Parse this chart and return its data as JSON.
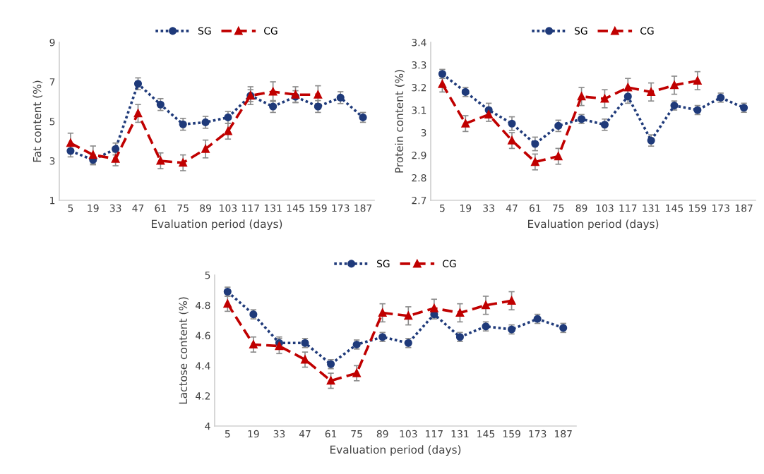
{
  "chart_data": [
    {
      "type": "line",
      "xlabel": "Evaluation period (days)",
      "ylabel": "Fat content (%)",
      "categories": [
        "5",
        "19",
        "33",
        "47",
        "61",
        "75",
        "89",
        "103",
        "117",
        "131",
        "145",
        "159",
        "173",
        "187"
      ],
      "ylim": [
        1,
        9
      ],
      "yticks": [
        1,
        3,
        5,
        7,
        9
      ],
      "legend": "top",
      "grid": false,
      "series": [
        {
          "name": "SG",
          "color": "#1f3a7a",
          "line_style": "dotted",
          "marker": "circle",
          "values": [
            3.5,
            3.05,
            3.6,
            6.9,
            5.85,
            4.85,
            4.95,
            5.2,
            6.3,
            5.75,
            6.25,
            5.75,
            6.2,
            5.2
          ],
          "errors": [
            0.3,
            0.25,
            0.3,
            0.3,
            0.3,
            0.3,
            0.3,
            0.3,
            0.3,
            0.3,
            0.3,
            0.3,
            0.3,
            0.25
          ]
        },
        {
          "name": "CG",
          "color": "#c00000",
          "line_style": "dashed",
          "marker": "triangle",
          "values": [
            3.9,
            3.3,
            3.1,
            5.4,
            3.0,
            2.9,
            3.6,
            4.5,
            6.3,
            6.5,
            6.35,
            6.35,
            null,
            null
          ],
          "errors": [
            0.5,
            0.45,
            0.35,
            0.45,
            0.4,
            0.4,
            0.45,
            0.4,
            0.45,
            0.5,
            0.4,
            0.45,
            null,
            null
          ]
        }
      ]
    },
    {
      "type": "line",
      "xlabel": "Evaluation period (days)",
      "ylabel": "Protein content (%)",
      "categories": [
        "5",
        "19",
        "33",
        "47",
        "61",
        "75",
        "89",
        "103",
        "117",
        "131",
        "145",
        "159",
        "173",
        "187"
      ],
      "ylim": [
        2.7,
        3.4
      ],
      "yticks": [
        2.7,
        2.8,
        2.9,
        3,
        3.1,
        3.2,
        3.3,
        3.4
      ],
      "legend": "top",
      "grid": false,
      "series": [
        {
          "name": "SG",
          "color": "#1f3a7a",
          "line_style": "dotted",
          "marker": "circle",
          "values": [
            3.26,
            3.18,
            3.1,
            3.04,
            2.95,
            3.03,
            3.06,
            3.035,
            3.16,
            2.965,
            3.12,
            3.1,
            3.155,
            3.11
          ],
          "errors": [
            0.02,
            0.02,
            0.03,
            0.03,
            0.03,
            0.025,
            0.02,
            0.025,
            0.03,
            0.025,
            0.02,
            0.02,
            0.02,
            0.02
          ]
        },
        {
          "name": "CG",
          "color": "#c00000",
          "line_style": "dashed",
          "marker": "triangle",
          "values": [
            3.215,
            3.04,
            3.08,
            2.965,
            2.87,
            2.895,
            3.16,
            3.15,
            3.2,
            3.18,
            3.21,
            3.23,
            null,
            null
          ],
          "errors": [
            0.035,
            0.035,
            0.03,
            0.035,
            0.035,
            0.035,
            0.04,
            0.04,
            0.04,
            0.04,
            0.04,
            0.04,
            null,
            null
          ]
        }
      ]
    },
    {
      "type": "line",
      "xlabel": "Evaluation period (days)",
      "ylabel": "Lactose content (%)",
      "categories": [
        "5",
        "19",
        "33",
        "47",
        "61",
        "75",
        "89",
        "103",
        "117",
        "131",
        "145",
        "159",
        "173",
        "187"
      ],
      "ylim": [
        4,
        5
      ],
      "yticks": [
        4,
        4.2,
        4.4,
        4.6,
        4.8,
        5
      ],
      "legend": "top",
      "grid": false,
      "series": [
        {
          "name": "SG",
          "color": "#1f3a7a",
          "line_style": "dotted",
          "marker": "circle",
          "values": [
            4.89,
            4.74,
            4.55,
            4.55,
            4.41,
            4.54,
            4.59,
            4.55,
            4.74,
            4.59,
            4.66,
            4.64,
            4.71,
            4.65
          ],
          "errors": [
            0.03,
            0.03,
            0.04,
            0.03,
            0.03,
            0.03,
            0.03,
            0.03,
            0.03,
            0.03,
            0.03,
            0.03,
            0.03,
            0.03
          ]
        },
        {
          "name": "CG",
          "color": "#c00000",
          "line_style": "dashed",
          "marker": "triangle",
          "values": [
            4.81,
            4.54,
            4.53,
            4.44,
            4.3,
            4.35,
            4.75,
            4.73,
            4.78,
            4.75,
            4.8,
            4.83,
            null,
            null
          ],
          "errors": [
            0.05,
            0.05,
            0.05,
            0.05,
            0.05,
            0.05,
            0.06,
            0.06,
            0.06,
            0.06,
            0.06,
            0.06,
            null,
            null
          ]
        }
      ]
    }
  ]
}
